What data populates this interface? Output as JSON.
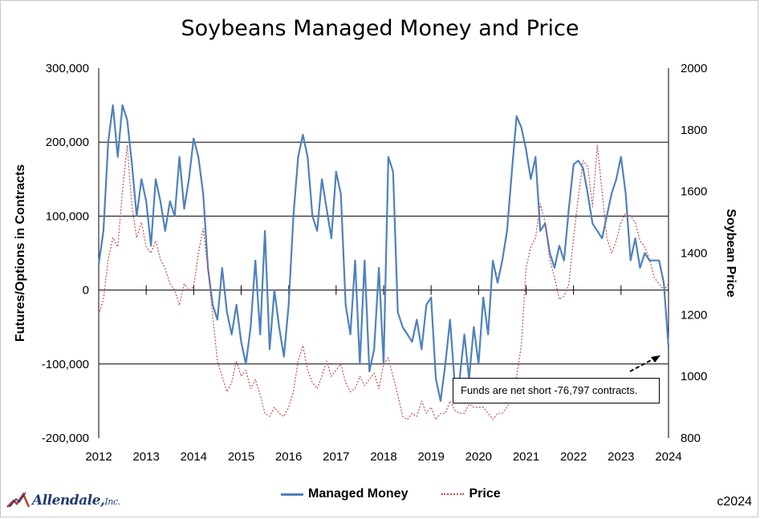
{
  "chart_data": {
    "type": "line",
    "title": "Soybeans Managed Money and Price",
    "ylabel_left": "Futures/Options in Contracts",
    "ylabel_right": "Soybean Price",
    "x_ticks": [
      "2012",
      "2013",
      "2014",
      "2015",
      "2016",
      "2017",
      "2018",
      "2019",
      "2020",
      "2021",
      "2022",
      "2023",
      "2024"
    ],
    "xlim": [
      2012,
      2024
    ],
    "ylim_left": [
      -200000,
      300000
    ],
    "ylim_right": [
      800,
      2000
    ],
    "y_ticks_left": [
      "300,000",
      "200,000",
      "100,000",
      "0",
      "-100,000",
      "-200,000"
    ],
    "y_ticks_right": [
      "2000",
      "1800",
      "1600",
      "1400",
      "1200",
      "1000",
      "800"
    ],
    "gridlines_left": [
      200000,
      100000,
      -100000
    ],
    "legend_position": "bottom",
    "series": [
      {
        "name": "Managed Money",
        "color": "#4f81bd",
        "style": "solid",
        "axis": "left",
        "x": [
          2012.0,
          2012.1,
          2012.2,
          2012.3,
          2012.4,
          2012.5,
          2012.6,
          2012.7,
          2012.8,
          2012.9,
          2013.0,
          2013.1,
          2013.2,
          2013.3,
          2013.4,
          2013.5,
          2013.6,
          2013.7,
          2013.8,
          2013.9,
          2014.0,
          2014.1,
          2014.2,
          2014.3,
          2014.4,
          2014.5,
          2014.6,
          2014.7,
          2014.8,
          2014.9,
          2015.0,
          2015.1,
          2015.2,
          2015.3,
          2015.4,
          2015.5,
          2015.6,
          2015.7,
          2015.8,
          2015.9,
          2016.0,
          2016.1,
          2016.2,
          2016.3,
          2016.4,
          2016.5,
          2016.6,
          2016.7,
          2016.8,
          2016.9,
          2017.0,
          2017.1,
          2017.2,
          2017.3,
          2017.4,
          2017.5,
          2017.6,
          2017.7,
          2017.8,
          2017.9,
          2018.0,
          2018.1,
          2018.2,
          2018.3,
          2018.4,
          2018.5,
          2018.6,
          2018.7,
          2018.8,
          2018.9,
          2019.0,
          2019.1,
          2019.2,
          2019.3,
          2019.4,
          2019.5,
          2019.6,
          2019.7,
          2019.8,
          2019.9,
          2020.0,
          2020.1,
          2020.2,
          2020.3,
          2020.4,
          2020.5,
          2020.6,
          2020.7,
          2020.8,
          2020.9,
          2021.0,
          2021.1,
          2021.2,
          2021.3,
          2021.4,
          2021.5,
          2021.6,
          2021.7,
          2021.8,
          2021.9,
          2022.0,
          2022.1,
          2022.2,
          2022.3,
          2022.4,
          2022.5,
          2022.6,
          2022.7,
          2022.8,
          2022.9,
          2023.0,
          2023.1,
          2023.2,
          2023.3,
          2023.4,
          2023.5,
          2023.6,
          2023.7,
          2023.8,
          2023.9,
          2024.0
        ],
        "values": [
          35000,
          80000,
          200000,
          250000,
          180000,
          250000,
          230000,
          170000,
          100000,
          150000,
          120000,
          60000,
          150000,
          120000,
          80000,
          120000,
          100000,
          180000,
          110000,
          150000,
          205000,
          180000,
          130000,
          30000,
          -20000,
          -40000,
          30000,
          -30000,
          -60000,
          -20000,
          -70000,
          -100000,
          -50000,
          40000,
          -60000,
          80000,
          -80000,
          0,
          -50000,
          -90000,
          -20000,
          100000,
          180000,
          210000,
          180000,
          100000,
          80000,
          150000,
          110000,
          70000,
          160000,
          130000,
          -20000,
          -60000,
          40000,
          -100000,
          40000,
          -110000,
          -80000,
          30000,
          -100000,
          180000,
          160000,
          -30000,
          -50000,
          -60000,
          -70000,
          -40000,
          -80000,
          -20000,
          -10000,
          -120000,
          -150000,
          -100000,
          -40000,
          -130000,
          -120000,
          -60000,
          -120000,
          -50000,
          -100000,
          -10000,
          -60000,
          40000,
          10000,
          40000,
          80000,
          160000,
          235000,
          220000,
          190000,
          150000,
          180000,
          80000,
          90000,
          50000,
          30000,
          60000,
          40000,
          110000,
          170000,
          175000,
          165000,
          130000,
          90000,
          80000,
          70000,
          100000,
          130000,
          150000,
          180000,
          130000,
          40000,
          70000,
          30000,
          50000,
          40000,
          40000,
          40000,
          10000,
          -76797
        ]
      },
      {
        "name": "Price",
        "color": "#c0504d",
        "style": "dotted",
        "axis": "right",
        "x": [
          2012.0,
          2012.1,
          2012.2,
          2012.3,
          2012.4,
          2012.5,
          2012.6,
          2012.7,
          2012.8,
          2012.9,
          2013.0,
          2013.1,
          2013.2,
          2013.3,
          2013.4,
          2013.5,
          2013.6,
          2013.7,
          2013.8,
          2013.9,
          2014.0,
          2014.1,
          2014.2,
          2014.3,
          2014.4,
          2014.5,
          2014.6,
          2014.7,
          2014.8,
          2014.9,
          2015.0,
          2015.1,
          2015.2,
          2015.3,
          2015.4,
          2015.5,
          2015.6,
          2015.7,
          2015.8,
          2015.9,
          2016.0,
          2016.1,
          2016.2,
          2016.3,
          2016.4,
          2016.5,
          2016.6,
          2016.7,
          2016.8,
          2016.9,
          2017.0,
          2017.1,
          2017.2,
          2017.3,
          2017.4,
          2017.5,
          2017.6,
          2017.7,
          2017.8,
          2017.9,
          2018.0,
          2018.1,
          2018.2,
          2018.3,
          2018.4,
          2018.5,
          2018.6,
          2018.7,
          2018.8,
          2018.9,
          2019.0,
          2019.1,
          2019.2,
          2019.3,
          2019.4,
          2019.5,
          2019.6,
          2019.7,
          2019.8,
          2019.9,
          2020.0,
          2020.1,
          2020.2,
          2020.3,
          2020.4,
          2020.5,
          2020.6,
          2020.7,
          2020.8,
          2020.9,
          2021.0,
          2021.1,
          2021.2,
          2021.3,
          2021.4,
          2021.5,
          2021.6,
          2021.7,
          2021.8,
          2021.9,
          2022.0,
          2022.1,
          2022.2,
          2022.3,
          2022.4,
          2022.5,
          2022.6,
          2022.7,
          2022.8,
          2022.9,
          2023.0,
          2023.1,
          2023.2,
          2023.3,
          2023.4,
          2023.5,
          2023.6,
          2023.7,
          2023.8,
          2023.9,
          2024.0
        ],
        "values": [
          1200,
          1250,
          1380,
          1450,
          1420,
          1600,
          1750,
          1550,
          1450,
          1500,
          1420,
          1400,
          1440,
          1380,
          1350,
          1300,
          1280,
          1230,
          1300,
          1280,
          1290,
          1400,
          1480,
          1350,
          1200,
          1050,
          1000,
          950,
          980,
          1050,
          1000,
          1020,
          960,
          990,
          940,
          880,
          870,
          900,
          880,
          870,
          900,
          950,
          1050,
          1100,
          1020,
          980,
          960,
          1000,
          1050,
          1000,
          1020,
          1040,
          980,
          950,
          960,
          1000,
          970,
          990,
          1010,
          960,
          1040,
          1060,
          1000,
          940,
          870,
          860,
          880,
          870,
          920,
          880,
          900,
          860,
          880,
          880,
          920,
          890,
          880,
          880,
          910,
          900,
          900,
          900,
          880,
          860,
          880,
          880,
          900,
          930,
          1000,
          1100,
          1350,
          1420,
          1450,
          1560,
          1500,
          1380,
          1320,
          1250,
          1260,
          1300,
          1450,
          1580,
          1700,
          1680,
          1550,
          1750,
          1600,
          1450,
          1400,
          1440,
          1500,
          1530,
          1520,
          1500,
          1440,
          1420,
          1380,
          1320,
          1300,
          1280,
          1300
        ]
      }
    ],
    "annotation": "Funds are net short -76,797 contracts."
  },
  "legend": {
    "managed_money_label": "Managed Money",
    "price_label": "Price"
  },
  "footer": {
    "logo_name": "Allendale,",
    "logo_suffix": "Inc.",
    "copyright": "c2024"
  }
}
